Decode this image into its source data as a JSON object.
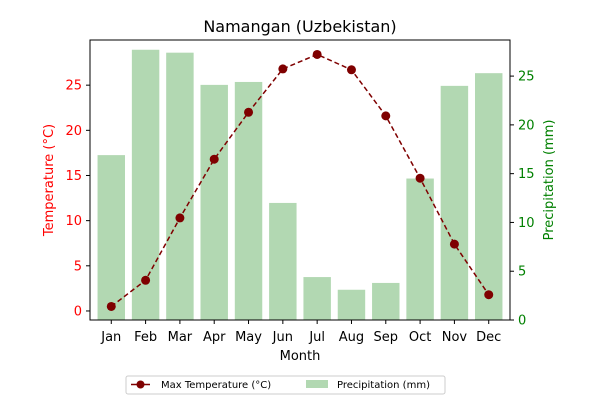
{
  "chart_data": {
    "type": "bar+line",
    "title": "Namangan (Uzbekistan)",
    "xlabel": "Month",
    "ylabel_left": "Temperature (°C)",
    "ylabel_right": "Precipitation (mm)",
    "categories": [
      "Jan",
      "Feb",
      "Mar",
      "Apr",
      "May",
      "Jun",
      "Jul",
      "Aug",
      "Sep",
      "Oct",
      "Nov",
      "Dec"
    ],
    "left_ylim": [
      -1,
      30
    ],
    "left_ticks": [
      0,
      5,
      10,
      15,
      20,
      25
    ],
    "right_ylim": [
      0,
      28.7
    ],
    "right_ticks": [
      0,
      5,
      10,
      15,
      20,
      25
    ],
    "series": [
      {
        "name": "Max Temperature (°C)",
        "kind": "line",
        "axis": "left",
        "color": "#7f0000",
        "values": [
          0.5,
          3.4,
          10.3,
          16.8,
          22.0,
          26.8,
          28.4,
          26.7,
          21.6,
          14.7,
          7.4,
          1.8
        ]
      },
      {
        "name": "Precipitation (mm)",
        "kind": "bar",
        "axis": "right",
        "color": "#b2d8b2",
        "values": [
          16.9,
          27.7,
          27.4,
          24.1,
          24.4,
          12.0,
          4.4,
          3.1,
          3.8,
          14.5,
          24.0,
          25.3
        ]
      }
    ],
    "left_axis_color": "#ff0000",
    "right_axis_color": "#008000",
    "legend_position": "bottom-center"
  }
}
